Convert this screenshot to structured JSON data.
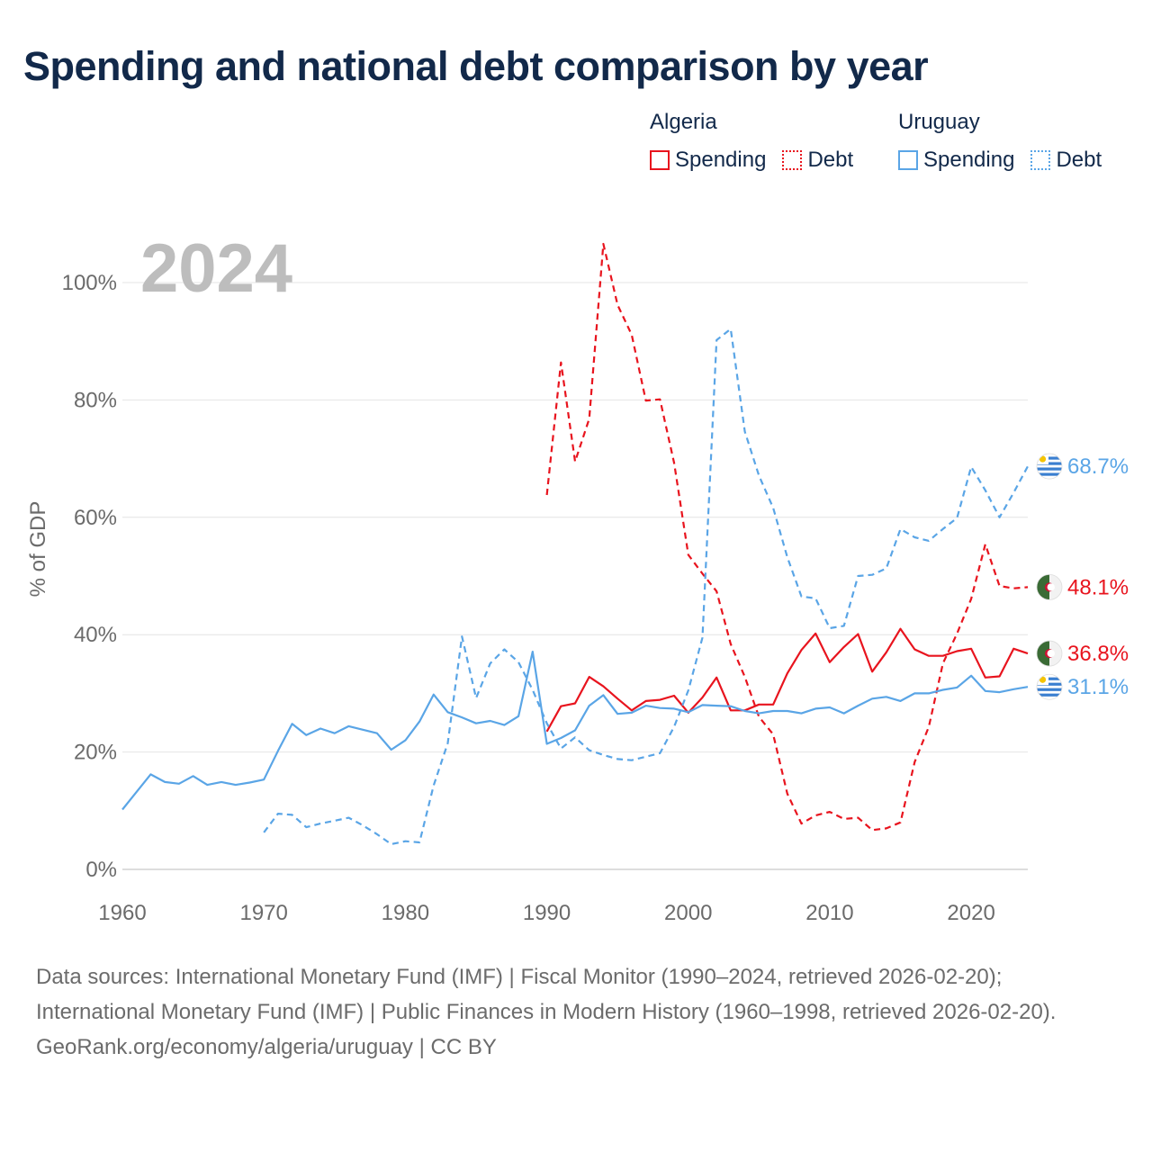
{
  "title": "Spending and national debt comparison by year",
  "legend": {
    "groups": [
      {
        "name": "Algeria",
        "items": [
          {
            "label": "Spending",
            "style": "solid",
            "color": "#e8141e"
          },
          {
            "label": "Debt",
            "style": "dotted",
            "color": "#e8141e"
          }
        ]
      },
      {
        "name": "Uruguay",
        "items": [
          {
            "label": "Spending",
            "style": "solid",
            "color": "#5aa5e6"
          },
          {
            "label": "Debt",
            "style": "dotted",
            "color": "#5aa5e6"
          }
        ]
      }
    ]
  },
  "footer": {
    "sources": "Data sources: International Monetary Fund (IMF) | Fiscal Monitor (1990–2024, retrieved 2026-02-20); International Monetary Fund (IMF) | Public Finances in Modern History (1960–1998, retrieved 2026-02-20).",
    "credit": "GeoRank.org/economy/algeria/uruguay | CC BY"
  },
  "chart_data": {
    "type": "line",
    "title": "Spending and national debt comparison by year",
    "year_label": "2024",
    "xlabel": "",
    "ylabel": "% of GDP",
    "xlim": [
      1960,
      2024
    ],
    "ylim": [
      0,
      100
    ],
    "x_ticks": [
      1960,
      1970,
      1980,
      1990,
      2000,
      2010,
      2020
    ],
    "y_ticks": [
      0,
      20,
      40,
      60,
      80,
      100
    ],
    "y_tick_labels": [
      "0%",
      "20%",
      "40%",
      "60%",
      "80%",
      "100%"
    ],
    "grid": true,
    "series": [
      {
        "name": "Algeria Spending",
        "country": "Algeria",
        "metric": "Spending",
        "color": "#e8141e",
        "dash": "solid",
        "end_label": "36.8%",
        "flag_icon": "algeria-flag-icon",
        "x": [
          1990,
          1991,
          1992,
          1993,
          1994,
          1995,
          1996,
          1997,
          1998,
          1999,
          2000,
          2001,
          2002,
          2003,
          2004,
          2005,
          2006,
          2007,
          2008,
          2009,
          2010,
          2011,
          2012,
          2013,
          2014,
          2015,
          2016,
          2017,
          2018,
          2019,
          2020,
          2021,
          2022,
          2023,
          2024
        ],
        "values": [
          23.5,
          27.8,
          28.3,
          32.8,
          31.2,
          29.1,
          27.1,
          28.7,
          28.9,
          29.6,
          26.7,
          29.3,
          32.7,
          27.1,
          27.1,
          28.1,
          28.1,
          33.4,
          37.4,
          40.2,
          35.3,
          37.9,
          40.1,
          33.7,
          37.0,
          41.0,
          37.5,
          36.4,
          36.4,
          37.2,
          37.6,
          32.7,
          32.9,
          37.6,
          36.8
        ]
      },
      {
        "name": "Algeria Debt",
        "country": "Algeria",
        "metric": "Debt",
        "color": "#e8141e",
        "dash": "dashed",
        "end_label": "48.1%",
        "flag_icon": "algeria-flag-icon",
        "x": [
          1990,
          1991,
          1992,
          1993,
          1994,
          1995,
          1996,
          1997,
          1998,
          1999,
          2000,
          2001,
          2002,
          2003,
          2004,
          2005,
          2006,
          2007,
          2008,
          2009,
          2010,
          2011,
          2012,
          2013,
          2014,
          2015,
          2016,
          2017,
          2018,
          2019,
          2020,
          2021,
          2022,
          2023,
          2024
        ],
        "values": [
          63.8,
          86.4,
          69.5,
          76.8,
          106.6,
          96.2,
          91.1,
          79.9,
          80.1,
          69.3,
          53.6,
          50.4,
          47.4,
          38.4,
          32.8,
          26.0,
          23.0,
          12.9,
          7.8,
          9.2,
          9.8,
          8.6,
          8.8,
          6.7,
          7.0,
          8.0,
          18.3,
          24.3,
          35.1,
          40.2,
          46.1,
          55.4,
          48.3,
          47.9,
          48.1
        ]
      },
      {
        "name": "Uruguay Spending",
        "country": "Uruguay",
        "metric": "Spending",
        "color": "#5aa5e6",
        "dash": "solid",
        "end_label": "31.1%",
        "flag_icon": "uruguay-flag-icon",
        "x": [
          1960,
          1961,
          1962,
          1963,
          1964,
          1965,
          1966,
          1967,
          1968,
          1969,
          1970,
          1971,
          1972,
          1973,
          1974,
          1975,
          1976,
          1977,
          1978,
          1979,
          1980,
          1981,
          1982,
          1983,
          1984,
          1985,
          1986,
          1987,
          1988,
          1989,
          1990,
          1991,
          1992,
          1993,
          1994,
          1995,
          1996,
          1997,
          1998,
          1999,
          2000,
          2001,
          2002,
          2003,
          2004,
          2005,
          2006,
          2007,
          2008,
          2009,
          2010,
          2011,
          2012,
          2013,
          2014,
          2015,
          2016,
          2017,
          2018,
          2019,
          2020,
          2021,
          2022,
          2023,
          2024
        ],
        "values": [
          10.2,
          13.2,
          16.2,
          14.9,
          14.6,
          15.9,
          14.4,
          14.9,
          14.4,
          14.8,
          15.3,
          20.2,
          24.8,
          22.9,
          24.0,
          23.2,
          24.4,
          23.8,
          23.2,
          20.4,
          22.0,
          25.2,
          29.8,
          26.8,
          25.9,
          24.9,
          25.3,
          24.6,
          26.1,
          37.1,
          21.4,
          22.4,
          23.7,
          27.9,
          29.7,
          26.5,
          26.7,
          27.9,
          27.5,
          27.4,
          26.8,
          28.0,
          27.9,
          27.8,
          27.0,
          26.6,
          27.0,
          27.0,
          26.6,
          27.4,
          27.6,
          26.6,
          27.9,
          29.1,
          29.4,
          28.7,
          30.0,
          30.0,
          30.6,
          31.0,
          33.0,
          30.4,
          30.2,
          30.7,
          31.1
        ]
      },
      {
        "name": "Uruguay Debt",
        "country": "Uruguay",
        "metric": "Debt",
        "color": "#5aa5e6",
        "dash": "dashed",
        "end_label": "68.7%",
        "flag_icon": "uruguay-flag-icon",
        "x": [
          1970,
          1971,
          1972,
          1973,
          1974,
          1975,
          1976,
          1977,
          1978,
          1979,
          1980,
          1981,
          1982,
          1983,
          1984,
          1985,
          1986,
          1987,
          1988,
          1989,
          1990,
          1991,
          1992,
          1993,
          1994,
          1995,
          1996,
          1997,
          1998,
          1999,
          2000,
          2001,
          2002,
          2003,
          2004,
          2005,
          2006,
          2007,
          2008,
          2009,
          2010,
          2011,
          2012,
          2013,
          2014,
          2015,
          2016,
          2017,
          2018,
          2019,
          2020,
          2021,
          2022,
          2023,
          2024
        ],
        "values": [
          6.3,
          9.5,
          9.3,
          7.2,
          7.8,
          8.3,
          8.8,
          7.5,
          6.0,
          4.3,
          4.8,
          4.6,
          14.3,
          21.5,
          39.7,
          29.2,
          35.1,
          37.5,
          35.3,
          30.6,
          24.9,
          20.6,
          22.5,
          20.3,
          19.5,
          18.8,
          18.6,
          19.2,
          19.8,
          24.3,
          30.5,
          39.5,
          90.2,
          92.1,
          74.6,
          67.1,
          61.6,
          53.2,
          46.5,
          46.2,
          41.1,
          41.5,
          50.0,
          50.2,
          51.3,
          58.0,
          56.6,
          56.0,
          58.0,
          59.9,
          68.6,
          64.6,
          60.0,
          64.2,
          68.7
        ]
      }
    ]
  }
}
